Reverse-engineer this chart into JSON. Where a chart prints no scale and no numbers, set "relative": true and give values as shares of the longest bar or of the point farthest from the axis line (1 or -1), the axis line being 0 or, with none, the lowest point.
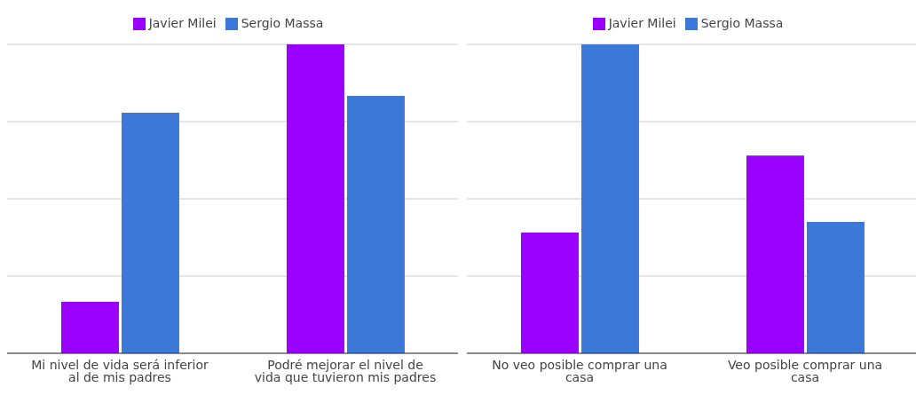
{
  "chart_data": [
    {
      "type": "bar",
      "relative": true,
      "categories": [
        "Mi nivel de vida será inferior al de mis padres",
        "Podré mejorar el nivel de vida que tuvieron mis padres"
      ],
      "series": [
        {
          "name": "Javier Milei",
          "color": "#9900ff",
          "values": [
            0.167,
            1
          ]
        },
        {
          "name": "Sergio Massa",
          "color": "#3c78d8",
          "values": [
            0.779,
            0.833
          ]
        }
      ],
      "grid": "y",
      "legend": "top"
    },
    {
      "type": "bar",
      "relative": true,
      "categories": [
        "No veo posible comprar una casa",
        "Veo posible comprar una casa"
      ],
      "series": [
        {
          "name": "Javier Milei",
          "color": "#9900ff",
          "values": [
            0.391,
            0.64
          ]
        },
        {
          "name": "Sergio Massa",
          "color": "#3c78d8",
          "values": [
            1,
            0.425
          ]
        }
      ],
      "grid": "y",
      "legend": "top"
    }
  ]
}
